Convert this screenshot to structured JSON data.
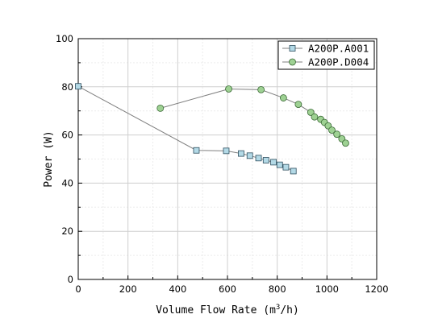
{
  "chart_data": {
    "type": "line",
    "xlabel": "Volume Flow Rate (m",
    "xlabel_sup": "3",
    "xlabel_suffix": "/h)",
    "ylabel": "Power (W)",
    "xlim": [
      0,
      1200
    ],
    "ylim": [
      0,
      100
    ],
    "xticks": [
      0,
      200,
      400,
      600,
      800,
      1000,
      1200
    ],
    "yticks": [
      0,
      20,
      40,
      60,
      80,
      100
    ],
    "grid": true,
    "legend_position": "top-right",
    "series": [
      {
        "name": "A200P.A001",
        "marker": "square",
        "marker_color": "#b3d9e6",
        "line_color": "#7f7f7f",
        "x": [
          0,
          475,
          595,
          655,
          690,
          725,
          755,
          785,
          810,
          835,
          865
        ],
        "y": [
          80.2,
          53.6,
          53.4,
          52.3,
          51.4,
          50.4,
          49.5,
          48.7,
          47.6,
          46.6,
          45.0
        ]
      },
      {
        "name": "A200P.D004",
        "marker": "circle",
        "marker_color": "#9ed193",
        "line_color": "#7f7f7f",
        "x": [
          330,
          605,
          735,
          825,
          885,
          935,
          950,
          975,
          990,
          1005,
          1020,
          1040,
          1060,
          1075
        ],
        "y": [
          71.1,
          79.1,
          78.8,
          75.4,
          72.7,
          69.4,
          67.5,
          66.5,
          65.2,
          63.8,
          62.0,
          60.3,
          58.4,
          56.6
        ]
      }
    ]
  }
}
